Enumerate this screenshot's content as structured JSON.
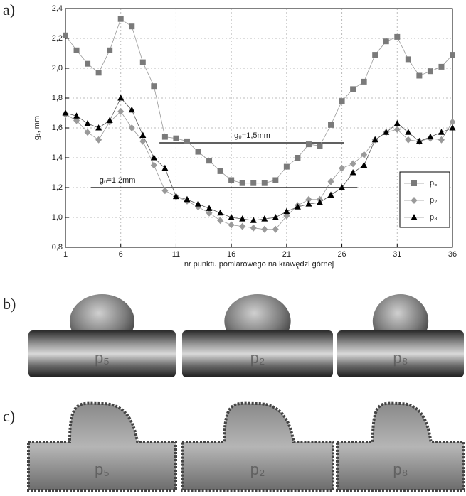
{
  "chart_data": {
    "type": "line",
    "y_label": "g₁, mm",
    "x_label": "nr punktu pomiarowego na krawędzi górnej",
    "x": [
      1,
      2,
      3,
      4,
      5,
      6,
      7,
      8,
      9,
      10,
      11,
      12,
      13,
      14,
      15,
      16,
      17,
      18,
      19,
      20,
      21,
      22,
      23,
      24,
      25,
      26,
      27,
      28,
      29,
      30,
      31,
      32,
      33,
      34,
      35,
      36
    ],
    "series": [
      {
        "name": "p₅",
        "color": "#7a7a7a",
        "marker": "square",
        "values": [
          2.22,
          2.12,
          2.03,
          1.97,
          2.12,
          2.33,
          2.28,
          2.04,
          1.88,
          1.54,
          1.53,
          1.51,
          1.44,
          1.38,
          1.31,
          1.25,
          1.23,
          1.23,
          1.23,
          1.25,
          1.34,
          1.4,
          1.49,
          1.48,
          1.62,
          1.78,
          1.86,
          1.91,
          2.09,
          2.18,
          2.21,
          2.06,
          1.95,
          1.98,
          2.01,
          2.09
        ]
      },
      {
        "name": "p₂",
        "color": "#9a9a9a",
        "marker": "diamond",
        "values": [
          1.69,
          1.65,
          1.57,
          1.52,
          1.64,
          1.71,
          1.6,
          1.51,
          1.35,
          1.18,
          1.14,
          1.11,
          1.07,
          1.03,
          0.98,
          0.95,
          0.94,
          0.93,
          0.92,
          0.92,
          1.01,
          1.08,
          1.12,
          1.12,
          1.24,
          1.33,
          1.36,
          1.42,
          1.52,
          1.57,
          1.59,
          1.52,
          1.51,
          1.53,
          1.52,
          1.64
        ]
      },
      {
        "name": "p₈",
        "color": "#000000",
        "marker": "triangle",
        "values": [
          1.7,
          1.68,
          1.63,
          1.6,
          1.65,
          1.8,
          1.72,
          1.55,
          1.4,
          1.33,
          1.14,
          1.12,
          1.09,
          1.06,
          1.03,
          1.0,
          0.99,
          0.98,
          0.99,
          1.0,
          1.04,
          1.07,
          1.09,
          1.1,
          1.15,
          1.2,
          1.3,
          1.35,
          1.52,
          1.57,
          1.63,
          1.57,
          1.51,
          1.54,
          1.57,
          1.6
        ]
      }
    ],
    "xlim": [
      1,
      36
    ],
    "xticks": [
      1,
      6,
      11,
      16,
      21,
      26,
      31,
      36
    ],
    "ylim": [
      0.8,
      2.4
    ],
    "yticks": [
      {
        "value": 0.8,
        "label": "0,8"
      },
      {
        "value": 1.0,
        "label": "1,0"
      },
      {
        "value": 1.2,
        "label": "1,2"
      },
      {
        "value": 1.4,
        "label": "1,4"
      },
      {
        "value": 1.6,
        "label": "1,6"
      },
      {
        "value": 1.8,
        "label": "1,8"
      },
      {
        "value": 2.0,
        "label": "2,0"
      },
      {
        "value": 2.2,
        "label": "2,2"
      },
      {
        "value": 2.4,
        "label": "2,4"
      }
    ],
    "grid": true,
    "legend": "lower right",
    "reference_lines": [
      {
        "label": "g₀=1,5mm",
        "value": 1.5,
        "x": [
          9.5,
          26.2
        ]
      },
      {
        "label": "g₀=1,2mm",
        "value": 1.2,
        "x": [
          3.3,
          27.4
        ]
      }
    ]
  },
  "panels": [
    "a)",
    "b)",
    "c)"
  ],
  "photos": {
    "b": [
      "p₅",
      "p₂",
      "p₈"
    ],
    "c": [
      "p₅",
      "p₂",
      "p₈"
    ]
  }
}
